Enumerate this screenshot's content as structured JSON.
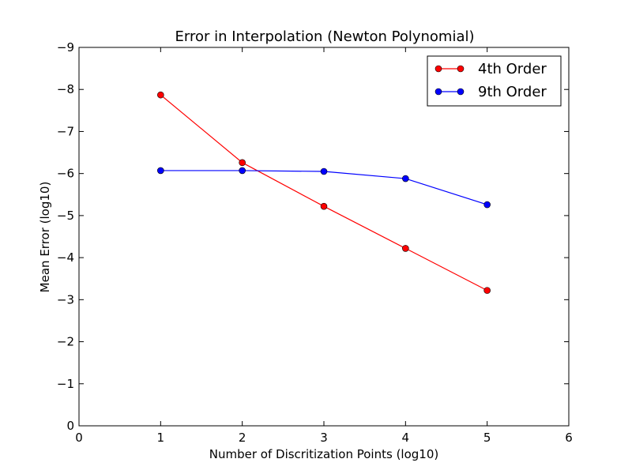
{
  "chart_data": {
    "type": "line",
    "title": "Error in Interpolation (Newton Polynomial)",
    "xlabel": "Number of Discritization Points (log10)",
    "ylabel": "Mean Error (log10)",
    "xlim": [
      0,
      6
    ],
    "ylim": [
      0,
      -9
    ],
    "y_axis_inverted": true,
    "grid": false,
    "legend_position": "top-right",
    "x_ticks": [
      0,
      1,
      2,
      3,
      4,
      5,
      6
    ],
    "x_tick_labels": [
      "0",
      "1",
      "2",
      "3",
      "4",
      "5",
      "6"
    ],
    "y_ticks": [
      -9,
      -8,
      -7,
      -6,
      -5,
      -4,
      -3,
      -2,
      -1,
      0
    ],
    "y_tick_labels": [
      "−9",
      "−8",
      "−7",
      "−6",
      "−5",
      "−4",
      "−3",
      "−2",
      "−1",
      "0"
    ],
    "series": [
      {
        "name": "4th Order",
        "color": "#ff0000",
        "marker": "circle",
        "x": [
          1,
          2,
          3,
          4,
          5
        ],
        "y": [
          -7.87,
          -6.26,
          -5.22,
          -4.22,
          -3.22
        ]
      },
      {
        "name": "9th Order",
        "color": "#0000ff",
        "marker": "circle",
        "x": [
          1,
          2,
          3,
          4,
          5
        ],
        "y": [
          -6.07,
          -6.07,
          -6.05,
          -5.88,
          -5.26
        ]
      }
    ]
  }
}
